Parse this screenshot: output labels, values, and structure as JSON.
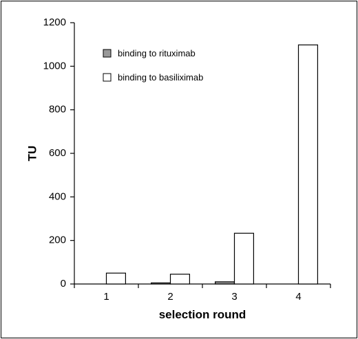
{
  "chart_data": {
    "type": "bar",
    "categories": [
      "1",
      "2",
      "3",
      "4"
    ],
    "series": [
      {
        "name": "binding to rituximab",
        "values": [
          0,
          5,
          10,
          0
        ],
        "color": "#999999"
      },
      {
        "name": "binding to basiliximab",
        "values": [
          50,
          45,
          233,
          1098
        ],
        "color": "#ffffff"
      }
    ],
    "xlabel": "selection round",
    "ylabel": "TU",
    "ylim": [
      0,
      1200
    ],
    "yticks": [
      "0",
      "200",
      "400",
      "600",
      "800",
      "1000",
      "1200"
    ],
    "grid": false,
    "legend_position": "top-left"
  }
}
